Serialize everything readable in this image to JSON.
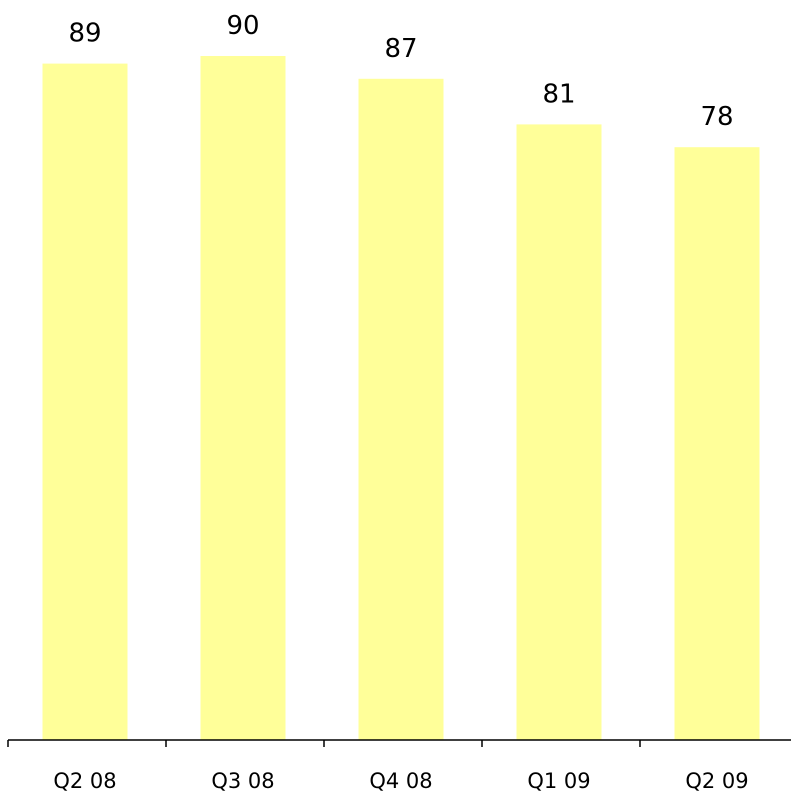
{
  "chart_data": {
    "type": "bar",
    "categories": [
      "Q2 08",
      "Q3 08",
      "Q4 08",
      "Q1 09",
      "Q2 09"
    ],
    "values": [
      89,
      90,
      87,
      81,
      78
    ],
    "color": "#ffff99",
    "ylim": [
      0,
      90
    ]
  }
}
